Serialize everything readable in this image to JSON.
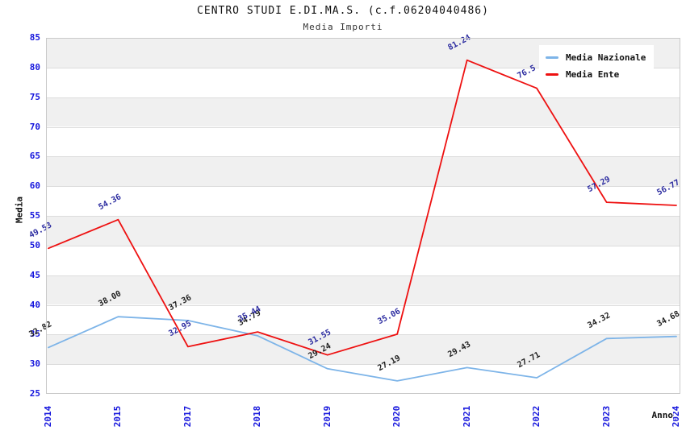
{
  "header": {
    "title": "CENTRO STUDI E.DI.MA.S. (c.f.06204040486)",
    "subtitle": "Media Importi"
  },
  "axes": {
    "y_label": "Media",
    "x_label": "Anno",
    "y_ticks": [
      25,
      30,
      35,
      40,
      45,
      50,
      55,
      60,
      65,
      70,
      75,
      80,
      85
    ],
    "ylim": [
      25,
      85
    ],
    "tick_color": "#1616dd"
  },
  "legend": [
    {
      "label": "Media Nazionale",
      "color": "#7db4e8"
    },
    {
      "label": "Media Ente",
      "color": "#ee1111"
    }
  ],
  "style_colors": {
    "band_gray": "#f0f0f0",
    "gridline": "#dcdcdc",
    "nazionale_line": "#7db4e8",
    "ente_line": "#ee1111",
    "nazionale_label": "#1f1f1f",
    "ente_label": "#2c2ca0"
  },
  "chart_data": {
    "type": "line",
    "title": "CENTRO STUDI E.DI.MA.S. (c.f.06204040486)",
    "subtitle": "Media Importi",
    "xlabel": "Anno",
    "ylabel": "Media",
    "ylim": [
      25,
      85
    ],
    "grid": "horizontal-with-alternating-bands",
    "legend_position": "top-right-inside",
    "categories": [
      "2014",
      "2015",
      "2017",
      "2018",
      "2019",
      "2020",
      "2021",
      "2022",
      "2023",
      "2024"
    ],
    "series": [
      {
        "name": "Media Nazionale",
        "color": "#7db4e8",
        "label_color": "#1f1f1f",
        "values": [
          32.82,
          38.0,
          37.36,
          34.79,
          29.24,
          27.19,
          29.43,
          27.71,
          34.32,
          34.68
        ],
        "labels": [
          "32.82",
          "38.00",
          "37.36",
          "34.79",
          "29.24",
          "27.19",
          "29.43",
          "27.71",
          "34.32",
          "34.68"
        ]
      },
      {
        "name": "Media Ente",
        "color": "#ee1111",
        "label_color": "#2c2ca0",
        "values": [
          49.53,
          54.36,
          32.95,
          35.44,
          31.55,
          35.06,
          81.24,
          76.5,
          57.29,
          56.77
        ],
        "labels": [
          "49.53",
          "54.36",
          "32.95",
          "35.44",
          "31.55",
          "35.06",
          "81.24",
          "76.5",
          "57.29",
          "56.77"
        ]
      }
    ]
  }
}
